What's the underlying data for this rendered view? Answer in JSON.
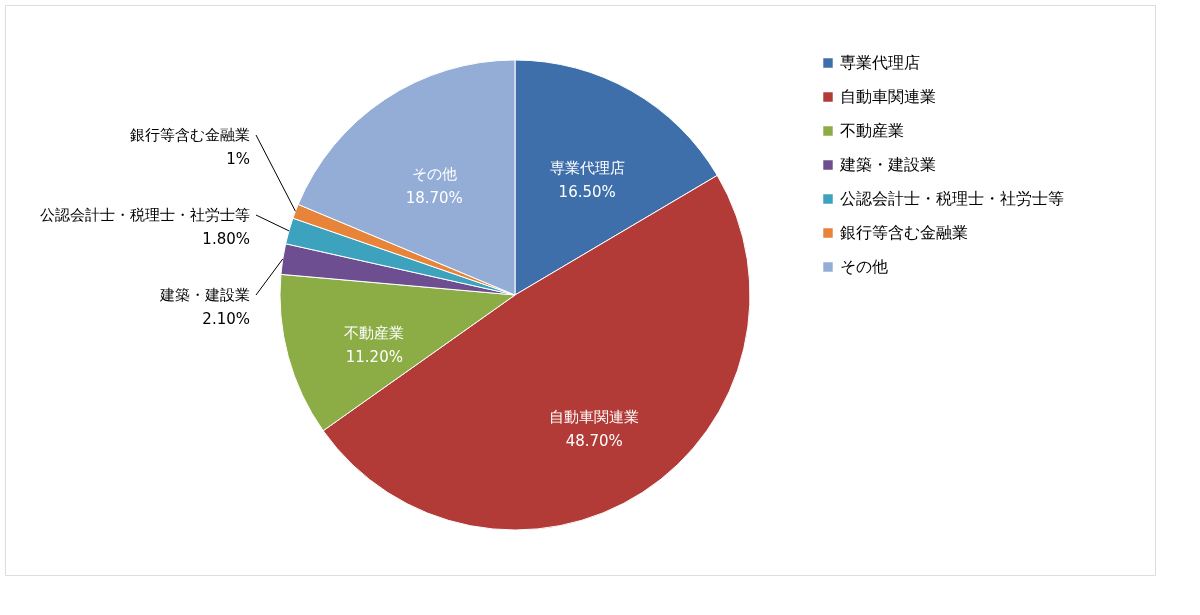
{
  "chart_data": {
    "type": "pie",
    "categories": [
      "専業代理店",
      "自動車関連業",
      "不動産業",
      "建築・建設業",
      "公認会計士・税理士・社労士等",
      "銀行等含む金融業",
      "その他"
    ],
    "values": [
      16.5,
      48.7,
      11.2,
      2.1,
      1.8,
      1,
      18.7
    ],
    "value_labels": [
      "16.50%",
      "48.70%",
      "11.20%",
      "2.10%",
      "1.80%",
      "1%",
      "18.70%"
    ],
    "colors": [
      "#3f6faa",
      "#b23b38",
      "#8cad46",
      "#6d4f91",
      "#3ca2bd",
      "#e8833a",
      "#93add6"
    ],
    "legend": "right"
  }
}
